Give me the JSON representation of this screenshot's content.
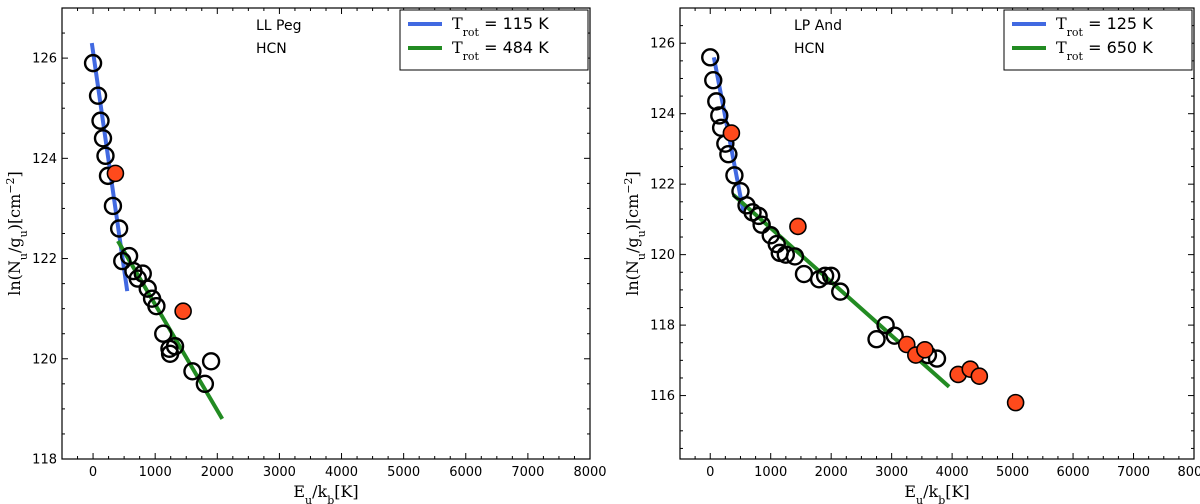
{
  "chart_data": [
    {
      "type": "scatter",
      "annotations": [
        "LL Peg",
        "HCN"
      ],
      "xlabel": "E_u/k_b[K]",
      "ylabel": "ln(N_u/g_u)[cm^-2]",
      "xlim": [
        -500,
        8000
      ],
      "ylim": [
        118,
        127
      ],
      "xticks": [
        0,
        1000,
        2000,
        3000,
        4000,
        5000,
        6000,
        7000,
        8000
      ],
      "yticks": [
        118,
        120,
        122,
        124,
        126
      ],
      "series": [
        {
          "marker": "open-circle",
          "color": "#000000",
          "points": [
            [
              0,
              125.9
            ],
            [
              80,
              125.25
            ],
            [
              120,
              124.75
            ],
            [
              160,
              124.4
            ],
            [
              200,
              124.05
            ],
            [
              240,
              123.65
            ],
            [
              320,
              123.05
            ],
            [
              420,
              122.6
            ],
            [
              470,
              121.95
            ],
            [
              580,
              122.05
            ],
            [
              650,
              121.75
            ],
            [
              720,
              121.6
            ],
            [
              800,
              121.7
            ],
            [
              880,
              121.4
            ],
            [
              950,
              121.2
            ],
            [
              1020,
              121.05
            ],
            [
              1130,
              120.5
            ],
            [
              1230,
              120.2
            ],
            [
              1240,
              120.1
            ],
            [
              1320,
              120.25
            ],
            [
              1600,
              119.75
            ],
            [
              1800,
              119.5
            ],
            [
              1900,
              119.95
            ]
          ]
        },
        {
          "marker": "filled-circle",
          "color": "#ff4a1c",
          "points": [
            [
              360,
              123.7
            ],
            [
              1450,
              120.95
            ]
          ]
        }
      ],
      "fits": [
        {
          "name": "T_rot = 115 K",
          "label_prefix": "T",
          "label_sub": "rot",
          "label_value": "= 115 K",
          "color": "#4169e1",
          "x": [
            -20,
            550
          ],
          "y": [
            126.3,
            121.35
          ]
        },
        {
          "name": "T_rot = 484 K",
          "label_prefix": "T",
          "label_sub": "rot",
          "label_value": "= 484 K",
          "color": "#228b22",
          "x": [
            400,
            2080
          ],
          "y": [
            122.35,
            118.8
          ]
        }
      ],
      "legend_position": "top-right"
    },
    {
      "type": "scatter",
      "annotations": [
        "LP And",
        "HCN"
      ],
      "xlabel": "E_u/k_b[K]",
      "ylabel": "ln(N_u/g_u)[cm^-2]",
      "xlim": [
        -500,
        8000
      ],
      "ylim": [
        114.2,
        127
      ],
      "xticks": [
        0,
        1000,
        2000,
        3000,
        4000,
        5000,
        6000,
        7000,
        8000
      ],
      "yticks": [
        116,
        118,
        120,
        122,
        124,
        126
      ],
      "series": [
        {
          "marker": "open-circle",
          "color": "#000000",
          "points": [
            [
              0,
              125.6
            ],
            [
              50,
              124.95
            ],
            [
              100,
              124.35
            ],
            [
              150,
              123.95
            ],
            [
              180,
              123.6
            ],
            [
              250,
              123.15
            ],
            [
              300,
              122.85
            ],
            [
              400,
              122.25
            ],
            [
              500,
              121.8
            ],
            [
              600,
              121.4
            ],
            [
              700,
              121.2
            ],
            [
              800,
              121.1
            ],
            [
              850,
              120.85
            ],
            [
              1000,
              120.55
            ],
            [
              1100,
              120.3
            ],
            [
              1150,
              120.05
            ],
            [
              1250,
              120.0
            ],
            [
              1400,
              119.95
            ],
            [
              1550,
              119.45
            ],
            [
              1800,
              119.3
            ],
            [
              1900,
              119.4
            ],
            [
              2000,
              119.4
            ],
            [
              2150,
              118.95
            ],
            [
              2750,
              117.6
            ],
            [
              2900,
              118.0
            ],
            [
              3050,
              117.7
            ],
            [
              3600,
              117.15
            ],
            [
              3750,
              117.05
            ]
          ]
        },
        {
          "marker": "filled-circle",
          "color": "#ff4a1c",
          "points": [
            [
              350,
              123.45
            ],
            [
              1450,
              120.8
            ],
            [
              3250,
              117.45
            ],
            [
              3400,
              117.15
            ],
            [
              3550,
              117.3
            ],
            [
              4100,
              116.6
            ],
            [
              4300,
              116.75
            ],
            [
              4450,
              116.55
            ],
            [
              5050,
              115.8
            ]
          ]
        }
      ],
      "fits": [
        {
          "name": "T_rot = 125 K",
          "label_prefix": "T",
          "label_sub": "rot",
          "label_value": "= 125 K",
          "color": "#4169e1",
          "x": [
            60,
            550
          ],
          "y": [
            125.6,
            121.2
          ]
        },
        {
          "name": "T_rot = 650 K",
          "label_prefix": "T",
          "label_sub": "rot",
          "label_value": "= 650 K",
          "color": "#228b22",
          "x": [
            380,
            3950
          ],
          "y": [
            121.7,
            116.25
          ]
        }
      ],
      "legend_position": "top-right"
    }
  ]
}
